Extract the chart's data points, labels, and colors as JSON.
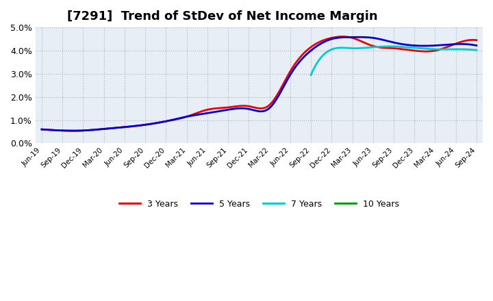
{
  "title": "[7291]  Trend of StDev of Net Income Margin",
  "ylim": [
    0.0,
    0.05
  ],
  "yticks": [
    0.0,
    0.01,
    0.02,
    0.03,
    0.04,
    0.05
  ],
  "grid_color": "#aaaaaa",
  "title_fontsize": 13,
  "legend_labels": [
    "3 Years",
    "5 Years",
    "7 Years",
    "10 Years"
  ],
  "legend_colors": [
    "#ee0000",
    "#0000dd",
    "#00cccc",
    "#009900"
  ],
  "x_labels": [
    "Jun-19",
    "Sep-19",
    "Dec-19",
    "Mar-20",
    "Jun-20",
    "Sep-20",
    "Dec-20",
    "Mar-21",
    "Jun-21",
    "Sep-21",
    "Dec-21",
    "Mar-22",
    "Jun-22",
    "Sep-22",
    "Dec-22",
    "Mar-23",
    "Jun-23",
    "Sep-23",
    "Dec-23",
    "Mar-24",
    "Jun-24",
    "Sep-24"
  ],
  "series_3y": [
    0.006,
    0.0055,
    0.0055,
    0.0062,
    0.007,
    0.008,
    0.0095,
    0.0115,
    0.0145,
    0.0155,
    0.016,
    0.0165,
    0.031,
    0.0415,
    0.0455,
    0.0455,
    0.042,
    0.041,
    0.04,
    0.04,
    0.043,
    0.0445
  ],
  "series_5y": [
    0.006,
    0.0055,
    0.0055,
    0.0062,
    0.007,
    0.008,
    0.0095,
    0.0115,
    0.013,
    0.0145,
    0.0148,
    0.0152,
    0.0295,
    0.04,
    0.045,
    0.0458,
    0.0455,
    0.0435,
    0.0422,
    0.0422,
    0.0428,
    0.0422
  ],
  "series_7y": [
    null,
    null,
    null,
    null,
    null,
    null,
    null,
    null,
    null,
    null,
    null,
    null,
    null,
    0.0295,
    0.0405,
    0.041,
    0.0415,
    0.0418,
    0.0412,
    0.0406,
    0.0406,
    0.0402
  ],
  "series_10y": [
    null,
    null,
    null,
    null,
    null,
    null,
    null,
    null,
    null,
    null,
    null,
    null,
    null,
    null,
    null,
    null,
    null,
    null,
    null,
    null,
    null,
    null
  ]
}
